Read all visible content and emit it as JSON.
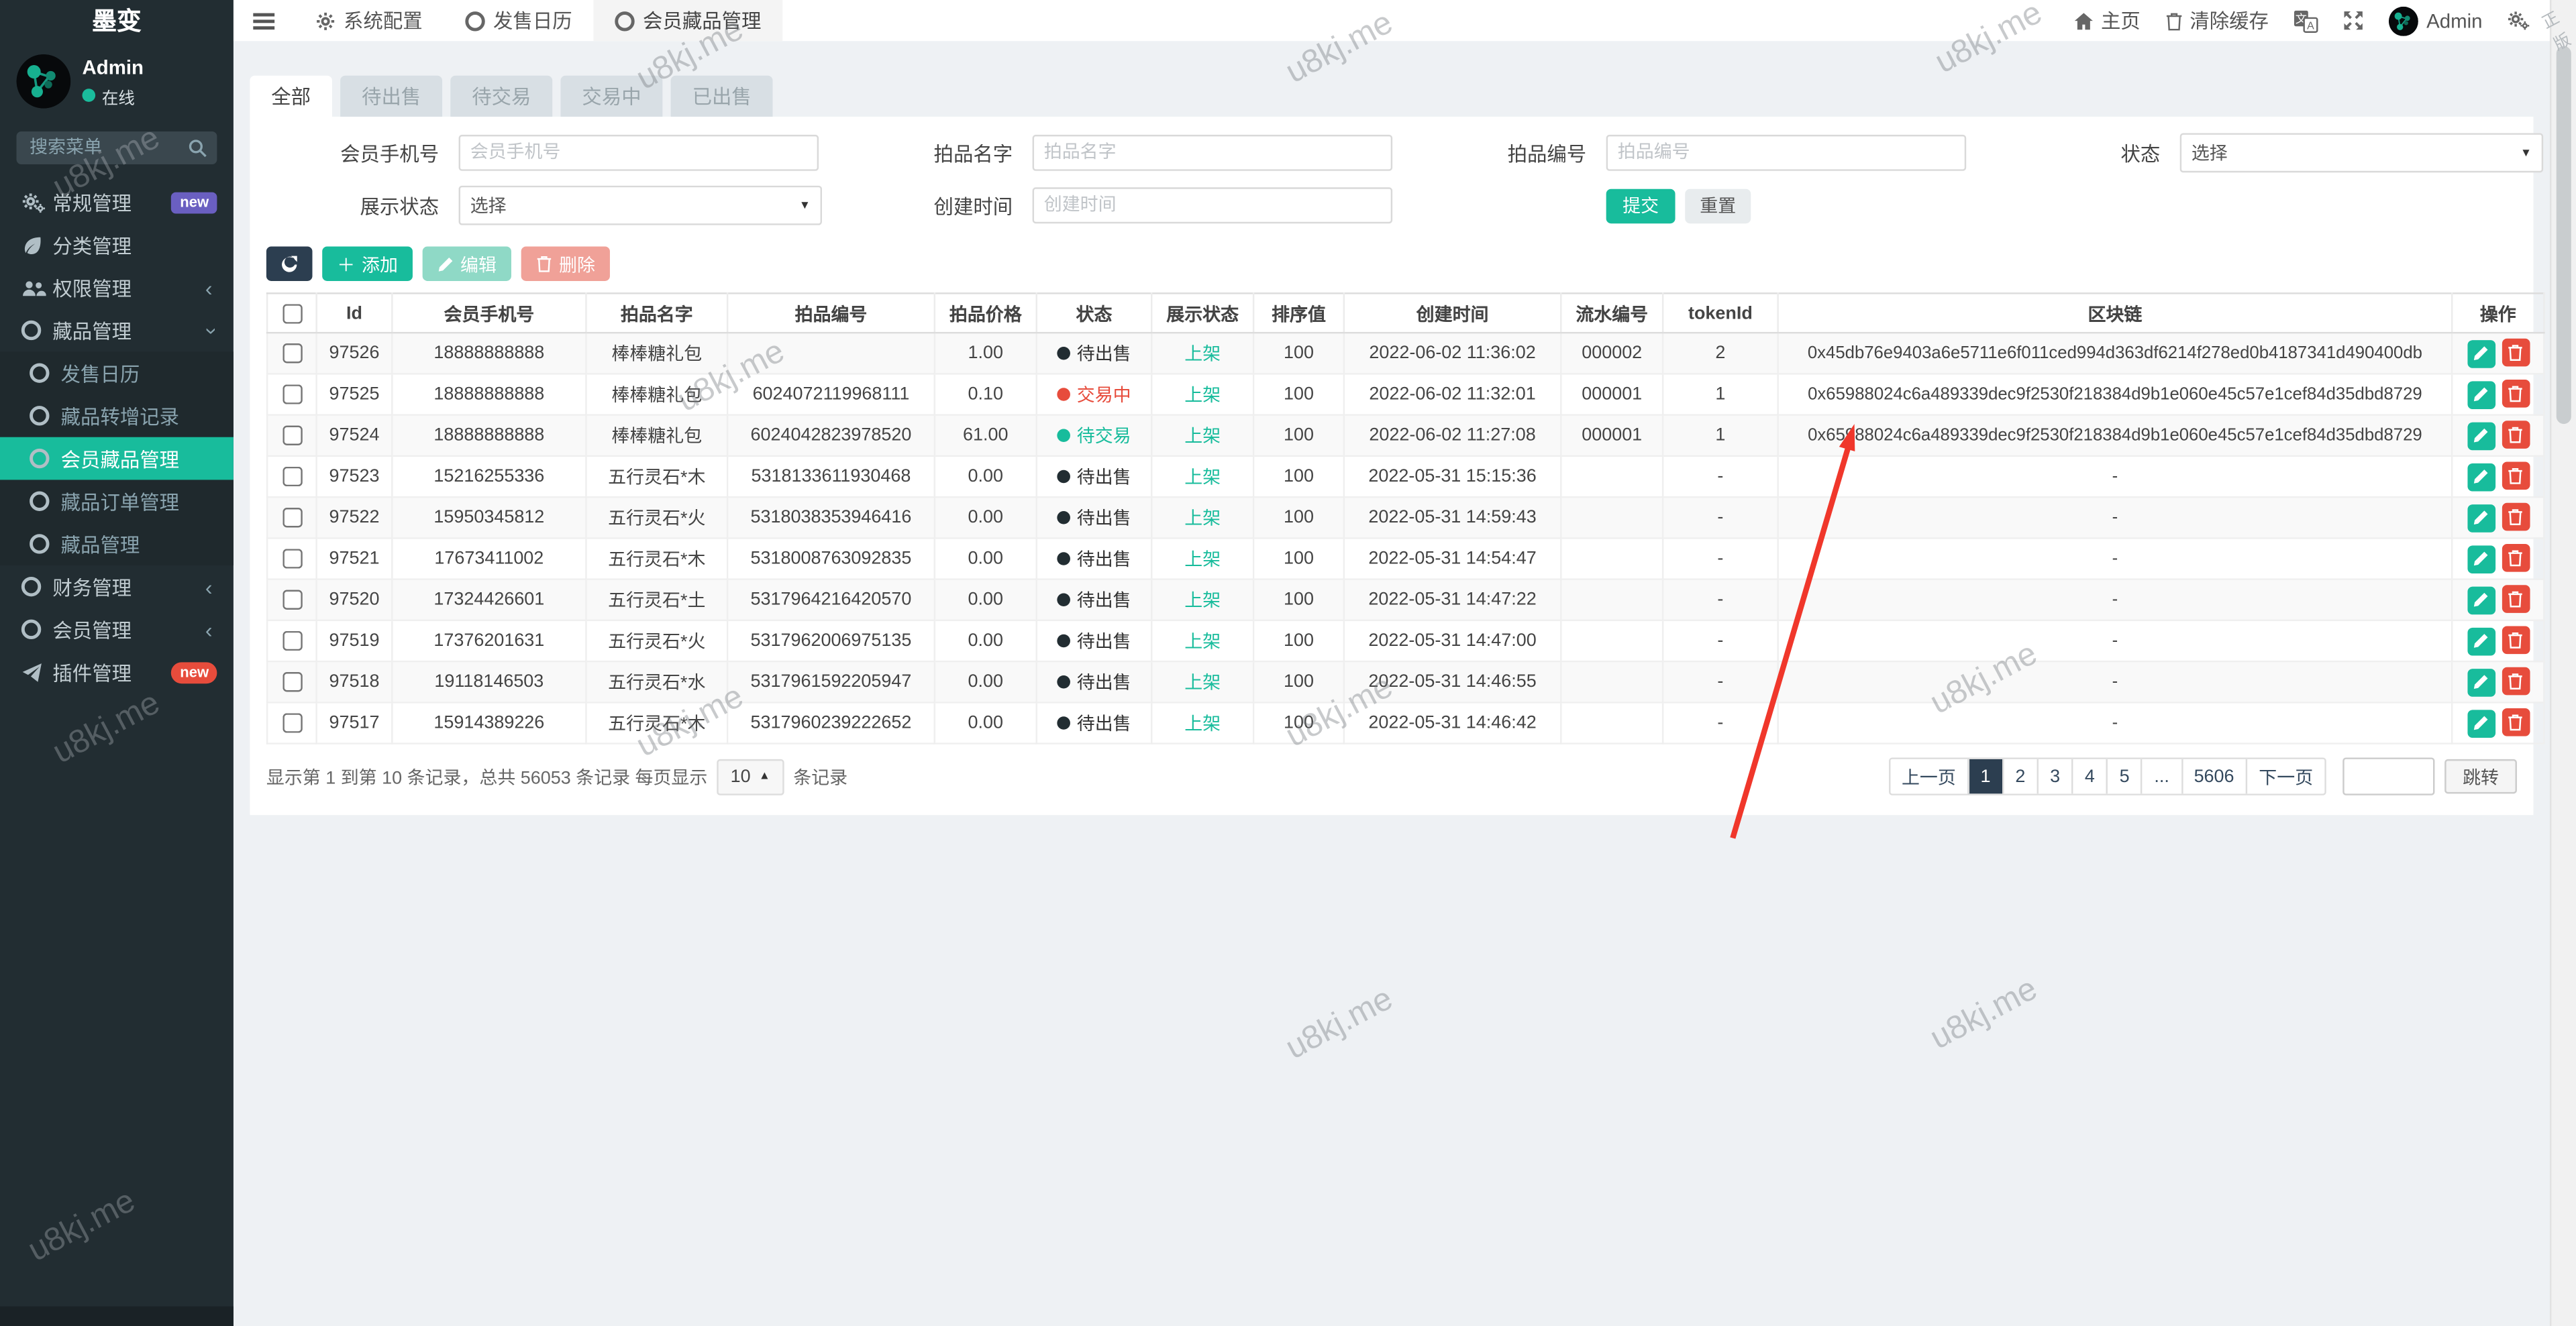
{
  "brand": "墨变",
  "watermark": "u8kj.me",
  "corner_mark": "正版",
  "user": {
    "name": "Admin",
    "status": "在线"
  },
  "sidebar": {
    "search_placeholder": "搜索菜单",
    "menu": [
      {
        "label": "常规管理",
        "icon": "cogs-icon",
        "badge": "new",
        "badge_style": "purple"
      },
      {
        "label": "分类管理",
        "icon": "leaf-icon"
      },
      {
        "label": "权限管理",
        "icon": "users-icon",
        "chevron": "left"
      },
      {
        "label": "藏品管理",
        "icon": "circle-icon",
        "chevron": "down",
        "children": [
          {
            "label": "发售日历"
          },
          {
            "label": "藏品转增记录"
          },
          {
            "label": "会员藏品管理",
            "active": true
          },
          {
            "label": "藏品订单管理"
          },
          {
            "label": "藏品管理"
          }
        ]
      },
      {
        "label": "财务管理",
        "icon": "circle-icon",
        "chevron": "left"
      },
      {
        "label": "会员管理",
        "icon": "circle-icon",
        "chevron": "left"
      },
      {
        "label": "插件管理",
        "icon": "rocket-icon",
        "badge": "new",
        "badge_style": "red-pill"
      }
    ]
  },
  "navbar": {
    "tabs": [
      {
        "label": "系统配置",
        "icon": "gear-icon"
      },
      {
        "label": "发售日历",
        "icon": "circle-icon"
      },
      {
        "label": "会员藏品管理",
        "icon": "circle-icon",
        "active": true
      }
    ],
    "home": "主页",
    "clear_cache": "清除缓存",
    "username": "Admin"
  },
  "tabs": [
    {
      "label": "全部",
      "active": true
    },
    {
      "label": "待出售"
    },
    {
      "label": "待交易"
    },
    {
      "label": "交易中"
    },
    {
      "label": "已出售"
    }
  ],
  "filters": {
    "row1": [
      {
        "label": "会员手机号",
        "type": "input",
        "placeholder": "会员手机号"
      },
      {
        "label": "拍品名字",
        "type": "input",
        "placeholder": "拍品名字"
      },
      {
        "label": "拍品编号",
        "type": "input",
        "placeholder": "拍品编号"
      },
      {
        "label": "状态",
        "type": "select",
        "value": "选择"
      }
    ],
    "row2": [
      {
        "label": "展示状态",
        "type": "select",
        "value": "选择"
      },
      {
        "label": "创建时间",
        "type": "input",
        "placeholder": "创建时间"
      },
      {
        "type": "buttons"
      }
    ],
    "submit": "提交",
    "reset": "重置"
  },
  "toolbar": {
    "add": "添加",
    "edit": "编辑",
    "delete": "删除"
  },
  "table": {
    "columns": [
      "Id",
      "会员手机号",
      "拍品名字",
      "拍品编号",
      "拍品价格",
      "状态",
      "展示状态",
      "排序值",
      "创建时间",
      "流水编号",
      "tokenId",
      "区块链",
      "操作"
    ],
    "status_colors": {
      "待出售": {
        "dot": "#222d32",
        "text": "#333333"
      },
      "交易中": {
        "dot": "#e74c3c",
        "text": "#e74c3c"
      },
      "待交易": {
        "dot": "#18bc9c",
        "text": "#18bc9c"
      }
    },
    "rows": [
      {
        "id": "97526",
        "phone": "18888888888",
        "name": "棒棒糖礼包",
        "code": "",
        "price": "1.00",
        "status": "待出售",
        "display": "上架",
        "sort": "100",
        "created": "2022-06-02 11:36:02",
        "serial": "000002",
        "token": "2",
        "chain": "0x45db76e9403a6e5711e6f011ced994d363df6214f278ed0b4187341d490400db"
      },
      {
        "id": "97525",
        "phone": "18888888888",
        "name": "棒棒糖礼包",
        "code": "6024072119968111",
        "price": "0.10",
        "status": "交易中",
        "display": "上架",
        "sort": "100",
        "created": "2022-06-02 11:32:01",
        "serial": "000001",
        "token": "1",
        "chain": "0x65988024c6a489339dec9f2530f218384d9b1e060e45c57e1cef84d35dbd8729"
      },
      {
        "id": "97524",
        "phone": "18888888888",
        "name": "棒棒糖礼包",
        "code": "6024042823978520",
        "price": "61.00",
        "status": "待交易",
        "display": "上架",
        "sort": "100",
        "created": "2022-06-02 11:27:08",
        "serial": "000001",
        "token": "1",
        "chain": "0x65988024c6a489339dec9f2530f218384d9b1e060e45c57e1cef84d35dbd8729"
      },
      {
        "id": "97523",
        "phone": "15216255336",
        "name": "五行灵石*木",
        "code": "5318133611930468",
        "price": "0.00",
        "status": "待出售",
        "display": "上架",
        "sort": "100",
        "created": "2022-05-31 15:15:36",
        "serial": "",
        "token": "-",
        "chain": "-"
      },
      {
        "id": "97522",
        "phone": "15950345812",
        "name": "五行灵石*火",
        "code": "5318038353946416",
        "price": "0.00",
        "status": "待出售",
        "display": "上架",
        "sort": "100",
        "created": "2022-05-31 14:59:43",
        "serial": "",
        "token": "-",
        "chain": "-"
      },
      {
        "id": "97521",
        "phone": "17673411002",
        "name": "五行灵石*木",
        "code": "5318008763092835",
        "price": "0.00",
        "status": "待出售",
        "display": "上架",
        "sort": "100",
        "created": "2022-05-31 14:54:47",
        "serial": "",
        "token": "-",
        "chain": "-"
      },
      {
        "id": "97520",
        "phone": "17324426601",
        "name": "五行灵石*土",
        "code": "5317964216420570",
        "price": "0.00",
        "status": "待出售",
        "display": "上架",
        "sort": "100",
        "created": "2022-05-31 14:47:22",
        "serial": "",
        "token": "-",
        "chain": "-"
      },
      {
        "id": "97519",
        "phone": "17376201631",
        "name": "五行灵石*火",
        "code": "5317962006975135",
        "price": "0.00",
        "status": "待出售",
        "display": "上架",
        "sort": "100",
        "created": "2022-05-31 14:47:00",
        "serial": "",
        "token": "-",
        "chain": "-"
      },
      {
        "id": "97518",
        "phone": "19118146503",
        "name": "五行灵石*水",
        "code": "5317961592205947",
        "price": "0.00",
        "status": "待出售",
        "display": "上架",
        "sort": "100",
        "created": "2022-05-31 14:46:55",
        "serial": "",
        "token": "-",
        "chain": "-"
      },
      {
        "id": "97517",
        "phone": "15914389226",
        "name": "五行灵石*木",
        "code": "5317960239222652",
        "price": "0.00",
        "status": "待出售",
        "display": "上架",
        "sort": "100",
        "created": "2022-05-31 14:46:42",
        "serial": "",
        "token": "-",
        "chain": "-"
      }
    ]
  },
  "pagination": {
    "info": "显示第 1 到第 10 条记录，总共 56053 条记录 每页显示",
    "per_page": "10",
    "suffix": "条记录",
    "pages": [
      "上一页",
      "1",
      "2",
      "3",
      "4",
      "5",
      "...",
      "5606",
      "下一页"
    ],
    "active_page": "1",
    "jump_label": "跳转"
  }
}
